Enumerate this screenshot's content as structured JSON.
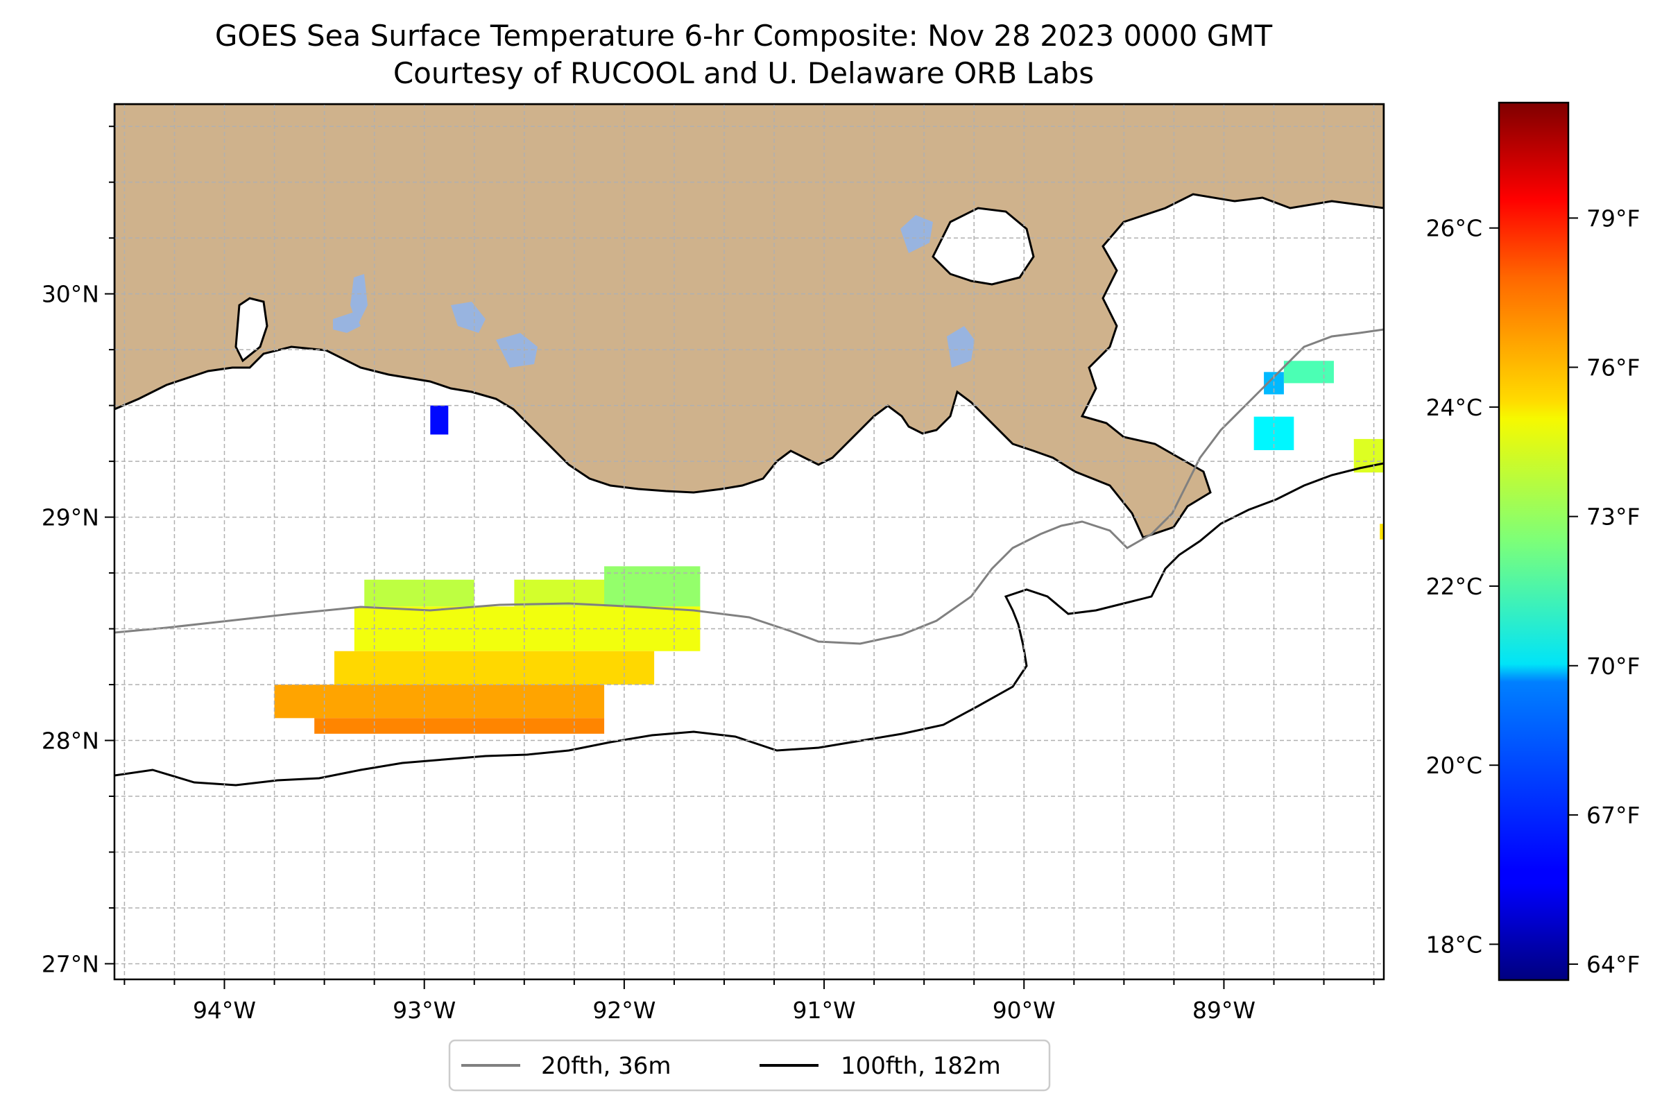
{
  "title": "GOES Sea Surface Temperature 6-hr Composite: Nov 28 2023 0000 GMT",
  "subtitle": "Courtesy of RUCOOL and U. Delaware ORB Labs",
  "chart_data": {
    "type": "heatmap",
    "lon_range": [
      -94.55,
      -88.2
    ],
    "lat_range": [
      26.93,
      30.85
    ],
    "lon_ticks": [
      {
        "value": -94,
        "label": "94°W"
      },
      {
        "value": -93,
        "label": "93°W"
      },
      {
        "value": -92,
        "label": "92°W"
      },
      {
        "value": -91,
        "label": "91°W"
      },
      {
        "value": -90,
        "label": "90°W"
      },
      {
        "value": -89,
        "label": "89°W"
      }
    ],
    "lat_ticks": [
      {
        "value": 27,
        "label": "27°N"
      },
      {
        "value": 28,
        "label": "28°N"
      },
      {
        "value": 29,
        "label": "29°N"
      },
      {
        "value": 30,
        "label": "30°N"
      }
    ],
    "grid": true,
    "grid_step_deg": 0.25,
    "colorbar": {
      "colormap": "jet",
      "range_c": [
        17.6,
        27.4
      ],
      "celsius_ticks": [
        {
          "value": 18,
          "label": "18°C"
        },
        {
          "value": 20,
          "label": "20°C"
        },
        {
          "value": 22,
          "label": "22°C"
        },
        {
          "value": 24,
          "label": "24°C"
        },
        {
          "value": 26,
          "label": "26°C"
        }
      ],
      "fahrenheit_ticks": [
        {
          "value": 64,
          "label": "64°F"
        },
        {
          "value": 67,
          "label": "67°F"
        },
        {
          "value": 70,
          "label": "70°F"
        },
        {
          "value": 73,
          "label": "73°F"
        },
        {
          "value": 76,
          "label": "76°F"
        },
        {
          "value": 79,
          "label": "79°F"
        }
      ]
    },
    "legend": {
      "placement": "bottom-center",
      "entries": [
        {
          "label": "20fth, 36m",
          "color": "#808080"
        },
        {
          "label": "100fth, 182m",
          "color": "#000000"
        }
      ]
    },
    "colors": {
      "land": "#cfb28c",
      "lakes": "#98b4e0",
      "ocean": "#ffffff",
      "grid": "#b0b0b0"
    },
    "sst_patches": [
      {
        "lon_min": -92.97,
        "lon_max": -92.88,
        "lat_min": 29.37,
        "lat_max": 29.5,
        "sst_c": 18.9
      },
      {
        "lon_min": -93.3,
        "lon_max": -92.75,
        "lat_min": 28.6,
        "lat_max": 28.72,
        "sst_c": 23.1
      },
      {
        "lon_min": -92.55,
        "lon_max": -91.9,
        "lat_min": 28.6,
        "lat_max": 28.72,
        "sst_c": 23.3
      },
      {
        "lon_min": -92.1,
        "lon_max": -91.62,
        "lat_min": 28.58,
        "lat_max": 28.78,
        "sst_c": 22.7
      },
      {
        "lon_min": -93.35,
        "lon_max": -91.62,
        "lat_min": 28.4,
        "lat_max": 28.6,
        "sst_c": 23.6
      },
      {
        "lon_min": -93.45,
        "lon_max": -91.85,
        "lat_min": 28.25,
        "lat_max": 28.4,
        "sst_c": 24.1
      },
      {
        "lon_min": -93.75,
        "lon_max": -92.1,
        "lat_min": 28.1,
        "lat_max": 28.25,
        "sst_c": 24.6
      },
      {
        "lon_min": -93.55,
        "lon_max": -92.1,
        "lat_min": 28.03,
        "lat_max": 28.1,
        "sst_c": 24.9
      },
      {
        "lon_min": -88.85,
        "lon_max": -88.65,
        "lat_min": 29.3,
        "lat_max": 29.45,
        "sst_c": 21.2
      },
      {
        "lon_min": -88.8,
        "lon_max": -88.7,
        "lat_min": 29.55,
        "lat_max": 29.65,
        "sst_c": 20.6
      },
      {
        "lon_min": -88.7,
        "lon_max": -88.45,
        "lat_min": 29.6,
        "lat_max": 29.7,
        "sst_c": 22.0
      },
      {
        "lon_min": -88.35,
        "lon_max": -88.2,
        "lat_min": 29.2,
        "lat_max": 29.35,
        "sst_c": 23.4
      },
      {
        "lon_min": -88.22,
        "lon_max": -88.17,
        "lat_min": 28.9,
        "lat_max": 28.97,
        "sst_c": 24.0
      }
    ]
  }
}
